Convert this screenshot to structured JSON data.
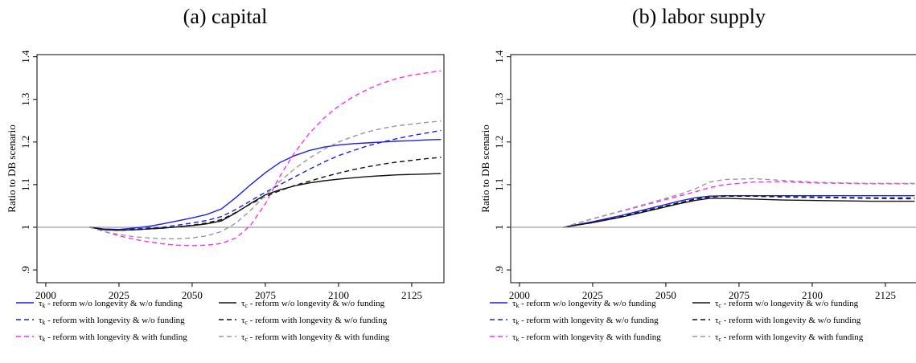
{
  "chart_data": [
    {
      "type": "line",
      "title": "(a) capital",
      "xlabel": "",
      "ylabel": "Ratio to DB scenario",
      "xlim": [
        1997,
        2136
      ],
      "ylim": [
        0.87,
        1.405
      ],
      "xticks": [
        2000,
        2025,
        2050,
        2075,
        2100,
        2125
      ],
      "yticks": [
        0.9,
        1,
        1.1,
        1.2,
        1.3,
        1.4
      ],
      "ytick_labels": [
        ".9",
        "1",
        "1.1",
        "1.2",
        "1.3",
        "1.4"
      ],
      "hline": 1,
      "grid": false,
      "legend_position": "bottom",
      "series": [
        {
          "name": "τk - reform w/o longevity & w/o funding",
          "color": "#1f1fe6",
          "dash": "solid",
          "x": [
            2015,
            2020,
            2025,
            2030,
            2035,
            2040,
            2045,
            2050,
            2055,
            2060,
            2065,
            2070,
            2075,
            2080,
            2085,
            2090,
            2095,
            2100,
            2105,
            2110,
            2115,
            2120,
            2125,
            2130,
            2135
          ],
          "y": [
            1.0,
            0.996,
            0.995,
            0.998,
            1.002,
            1.008,
            1.015,
            1.022,
            1.03,
            1.043,
            1.07,
            1.1,
            1.128,
            1.152,
            1.168,
            1.18,
            1.188,
            1.193,
            1.196,
            1.198,
            1.2,
            1.202,
            1.203,
            1.205,
            1.206
          ]
        },
        {
          "name": "τk - reform with longevity & w/o funding",
          "color": "#1f1fe6",
          "dash": "dashed",
          "x": [
            2015,
            2020,
            2025,
            2030,
            2035,
            2040,
            2045,
            2050,
            2055,
            2060,
            2065,
            2070,
            2075,
            2080,
            2085,
            2090,
            2095,
            2100,
            2105,
            2110,
            2115,
            2120,
            2125,
            2130,
            2135
          ],
          "y": [
            1.0,
            0.995,
            0.995,
            0.996,
            0.998,
            1.0,
            1.005,
            1.01,
            1.016,
            1.025,
            1.042,
            1.062,
            1.082,
            1.1,
            1.118,
            1.136,
            1.153,
            1.168,
            1.18,
            1.191,
            1.2,
            1.208,
            1.215,
            1.221,
            1.227
          ]
        },
        {
          "name": "τk - reform with longevity & with funding",
          "color": "#ff2ef0",
          "dash": "dashed",
          "x": [
            2015,
            2020,
            2025,
            2030,
            2035,
            2040,
            2045,
            2050,
            2055,
            2060,
            2065,
            2070,
            2075,
            2080,
            2085,
            2090,
            2095,
            2100,
            2105,
            2110,
            2115,
            2120,
            2125,
            2130,
            2135
          ],
          "y": [
            1.0,
            0.99,
            0.98,
            0.972,
            0.966,
            0.961,
            0.958,
            0.957,
            0.958,
            0.962,
            0.975,
            1.005,
            1.055,
            1.12,
            1.175,
            1.22,
            1.256,
            1.284,
            1.306,
            1.324,
            1.338,
            1.349,
            1.357,
            1.362,
            1.367
          ]
        },
        {
          "name": "τc - reform w/o longevity & w/o funding",
          "color": "#111111",
          "dash": "solid",
          "x": [
            2015,
            2020,
            2025,
            2030,
            2035,
            2040,
            2045,
            2050,
            2055,
            2060,
            2065,
            2070,
            2075,
            2080,
            2085,
            2090,
            2095,
            2100,
            2105,
            2110,
            2115,
            2120,
            2125,
            2130,
            2135
          ],
          "y": [
            1.0,
            0.994,
            0.993,
            0.994,
            0.996,
            0.998,
            1.001,
            1.004,
            1.008,
            1.015,
            1.034,
            1.056,
            1.076,
            1.088,
            1.097,
            1.104,
            1.109,
            1.113,
            1.116,
            1.119,
            1.121,
            1.123,
            1.124,
            1.125,
            1.126
          ]
        },
        {
          "name": "τc - reform with longevity & w/o funding",
          "color": "#111111",
          "dash": "dashed",
          "x": [
            2015,
            2020,
            2025,
            2030,
            2035,
            2040,
            2045,
            2050,
            2055,
            2060,
            2065,
            2070,
            2075,
            2080,
            2085,
            2090,
            2095,
            2100,
            2105,
            2110,
            2115,
            2120,
            2125,
            2130,
            2135
          ],
          "y": [
            1.0,
            0.994,
            0.993,
            0.994,
            0.996,
            0.998,
            1.001,
            1.005,
            1.01,
            1.018,
            1.035,
            1.055,
            1.072,
            1.086,
            1.098,
            1.108,
            1.118,
            1.127,
            1.135,
            1.142,
            1.148,
            1.153,
            1.157,
            1.161,
            1.164
          ]
        },
        {
          "name": "τc - reform with longevity & with funding",
          "color": "#999999",
          "dash": "dashed",
          "x": [
            2015,
            2020,
            2025,
            2030,
            2035,
            2040,
            2045,
            2050,
            2055,
            2060,
            2065,
            2070,
            2075,
            2080,
            2085,
            2090,
            2095,
            2100,
            2105,
            2110,
            2115,
            2120,
            2125,
            2130,
            2135
          ],
          "y": [
            1.0,
            0.99,
            0.983,
            0.978,
            0.975,
            0.973,
            0.973,
            0.975,
            0.98,
            0.99,
            1.01,
            1.04,
            1.075,
            1.108,
            1.137,
            1.162,
            1.183,
            1.2,
            1.213,
            1.224,
            1.232,
            1.238,
            1.242,
            1.246,
            1.249
          ]
        }
      ]
    },
    {
      "type": "line",
      "title": "(b) labor supply",
      "xlabel": "",
      "ylabel": "Ratio to DB scenario",
      "xlim": [
        1997,
        2136
      ],
      "ylim": [
        0.87,
        1.405
      ],
      "xticks": [
        2000,
        2025,
        2050,
        2075,
        2100,
        2125
      ],
      "yticks": [
        0.9,
        1,
        1.1,
        1.2,
        1.3,
        1.4
      ],
      "ytick_labels": [
        ".9",
        "1",
        "1.1",
        "1.2",
        "1.3",
        "1.4"
      ],
      "hline": 1,
      "grid": false,
      "legend_position": "bottom",
      "series": [
        {
          "name": "τk - reform w/o longevity & w/o funding",
          "color": "#1f1fe6",
          "dash": "solid",
          "x": [
            2015,
            2025,
            2035,
            2045,
            2055,
            2060,
            2065,
            2070,
            2080,
            2090,
            2100,
            2110,
            2120,
            2130,
            2135
          ],
          "y": [
            1.0,
            1.013,
            1.028,
            1.045,
            1.062,
            1.069,
            1.073,
            1.074,
            1.074,
            1.074,
            1.074,
            1.074,
            1.074,
            1.074,
            1.074
          ]
        },
        {
          "name": "τk - reform with longevity & w/o funding",
          "color": "#1f1fe6",
          "dash": "dashed",
          "x": [
            2015,
            2025,
            2035,
            2045,
            2055,
            2060,
            2065,
            2070,
            2080,
            2090,
            2100,
            2110,
            2120,
            2130,
            2135
          ],
          "y": [
            1.0,
            1.012,
            1.026,
            1.042,
            1.058,
            1.066,
            1.071,
            1.073,
            1.073,
            1.072,
            1.071,
            1.07,
            1.069,
            1.069,
            1.069
          ]
        },
        {
          "name": "τk - reform with longevity & with funding",
          "color": "#ff2ef0",
          "dash": "dashed",
          "x": [
            2015,
            2025,
            2035,
            2045,
            2055,
            2060,
            2065,
            2070,
            2080,
            2090,
            2100,
            2110,
            2120,
            2130,
            2135
          ],
          "y": [
            1.0,
            1.02,
            1.038,
            1.056,
            1.074,
            1.083,
            1.093,
            1.1,
            1.106,
            1.107,
            1.104,
            1.103,
            1.102,
            1.102,
            1.102
          ]
        },
        {
          "name": "τc - reform w/o longevity & w/o funding",
          "color": "#111111",
          "dash": "solid",
          "x": [
            2015,
            2025,
            2035,
            2045,
            2055,
            2060,
            2065,
            2070,
            2080,
            2090,
            2100,
            2110,
            2120,
            2130,
            2135
          ],
          "y": [
            1.0,
            1.011,
            1.024,
            1.04,
            1.056,
            1.063,
            1.068,
            1.068,
            1.066,
            1.064,
            1.063,
            1.062,
            1.061,
            1.061,
            1.061
          ]
        },
        {
          "name": "τc - reform with longevity & w/o funding",
          "color": "#111111",
          "dash": "dashed",
          "x": [
            2015,
            2025,
            2035,
            2045,
            2055,
            2060,
            2065,
            2070,
            2080,
            2090,
            2100,
            2110,
            2120,
            2130,
            2135
          ],
          "y": [
            1.0,
            1.011,
            1.025,
            1.042,
            1.058,
            1.066,
            1.071,
            1.073,
            1.073,
            1.071,
            1.07,
            1.069,
            1.068,
            1.067,
            1.067
          ]
        },
        {
          "name": "τc - reform with longevity & with funding",
          "color": "#999999",
          "dash": "dashed",
          "x": [
            2015,
            2025,
            2035,
            2045,
            2055,
            2060,
            2065,
            2070,
            2080,
            2090,
            2100,
            2110,
            2120,
            2130,
            2135
          ],
          "y": [
            1.0,
            1.02,
            1.039,
            1.058,
            1.078,
            1.09,
            1.106,
            1.112,
            1.114,
            1.11,
            1.106,
            1.104,
            1.103,
            1.103,
            1.103
          ]
        }
      ]
    }
  ]
}
